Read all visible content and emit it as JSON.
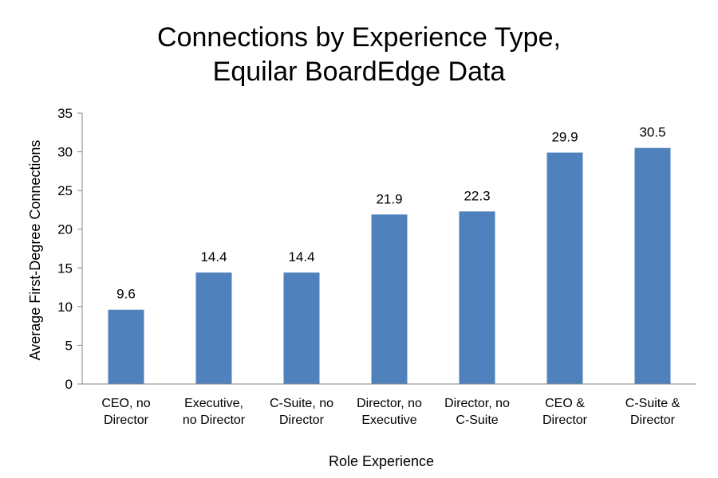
{
  "chart_data": {
    "type": "bar",
    "title_lines": [
      "Connections by Experience Type,",
      "Equilar BoardEdge Data"
    ],
    "categories": [
      [
        "CEO, no",
        "Director"
      ],
      [
        "Executive,",
        "no Director"
      ],
      [
        "C-Suite, no",
        "Director"
      ],
      [
        "Director, no",
        "Executive"
      ],
      [
        "Director, no",
        "C-Suite"
      ],
      [
        "CEO &",
        "Director"
      ],
      [
        "C-Suite &",
        "Director"
      ]
    ],
    "values": [
      9.6,
      14.4,
      14.4,
      21.9,
      22.3,
      29.9,
      30.5
    ],
    "data_labels": [
      "9.6",
      "14.4",
      "14.4",
      "21.9",
      "22.3",
      "29.9",
      "30.5"
    ],
    "xlabel": "Role Experience",
    "ylabel": "Average First-Degree Connections",
    "ylim": [
      0,
      35
    ],
    "yticks": [
      "0",
      "5",
      "10",
      "15",
      "20",
      "25",
      "30",
      "35"
    ],
    "grid": false,
    "legend": "none",
    "bar_color": "#4F81BD"
  }
}
